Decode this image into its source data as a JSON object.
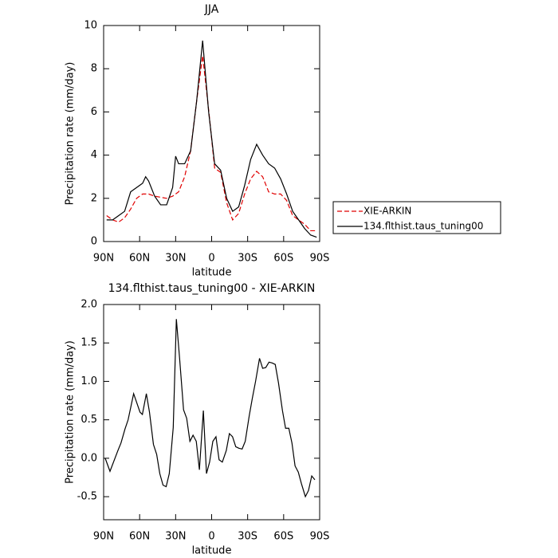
{
  "chart_data": [
    {
      "type": "line",
      "title": "JJA",
      "xlabel": "latitude",
      "ylabel": "Precipitation rate (mm/day)",
      "xlim": [
        90,
        -90
      ],
      "ylim": [
        0,
        10
      ],
      "xticks": [
        {
          "value": 90,
          "label": "90N"
        },
        {
          "value": 60,
          "label": "60N"
        },
        {
          "value": 30,
          "label": "30N"
        },
        0,
        {
          "value": -30,
          "label": "30S"
        },
        {
          "value": -60,
          "label": "60S"
        },
        {
          "value": -90,
          "label": "90S"
        }
      ],
      "yticks": [
        0,
        2,
        4,
        6,
        8,
        10
      ],
      "legend": "right",
      "series": [
        {
          "name": "XIE-ARKIN",
          "color": "#e00000",
          "style": "dashed",
          "x": [
            87.5,
            82.5,
            77.5,
            72.5,
            67.5,
            62.5,
            57.5,
            52.5,
            47.5,
            42.5,
            37.5,
            32.5,
            27.5,
            22.5,
            17.5,
            12.5,
            7.5,
            2.5,
            -2.5,
            -7.5,
            -12.5,
            -17.5,
            -22.5,
            -27.5,
            -32.5,
            -37.5,
            -42.5,
            -47.5,
            -52.5,
            -57.5,
            -62.5,
            -67.5,
            -72.5,
            -77.5,
            -82.5,
            -87.5
          ],
          "values": [
            1.2,
            1.0,
            0.9,
            1.1,
            1.5,
            2.0,
            2.2,
            2.2,
            2.1,
            2.05,
            2.0,
            2.1,
            2.3,
            3.0,
            4.2,
            6.5,
            8.6,
            6.1,
            3.4,
            3.2,
            1.8,
            1.0,
            1.3,
            2.2,
            2.9,
            3.25,
            3.0,
            2.3,
            2.2,
            2.2,
            1.9,
            1.2,
            1.0,
            0.8,
            0.5,
            0.5
          ]
        },
        {
          "name": "134.flthist.taus_tuning00",
          "color": "#000000",
          "style": "solid",
          "x": [
            87.5,
            82.5,
            77.5,
            72.5,
            67.5,
            62.5,
            57.5,
            55,
            52.5,
            47.5,
            42.5,
            37.5,
            32.5,
            30,
            27.5,
            22.5,
            17.5,
            12.5,
            7.5,
            2.5,
            -2.5,
            -7.5,
            -12.5,
            -17.5,
            -22.5,
            -27.5,
            -32.5,
            -37.5,
            -42.5,
            -47.5,
            -52.5,
            -57.5,
            -62.5,
            -67.5,
            -72.5,
            -77.5,
            -82.5,
            -87.5
          ],
          "values": [
            1.0,
            1.0,
            1.2,
            1.4,
            2.3,
            2.5,
            2.7,
            3.0,
            2.8,
            2.1,
            1.7,
            1.7,
            2.5,
            3.95,
            3.6,
            3.6,
            4.2,
            6.5,
            9.3,
            6.0,
            3.6,
            3.3,
            2.0,
            1.4,
            1.6,
            2.6,
            3.8,
            4.5,
            4.0,
            3.6,
            3.4,
            2.9,
            2.2,
            1.4,
            1.0,
            0.6,
            0.3,
            0.2
          ]
        }
      ]
    },
    {
      "type": "line",
      "title": "134.flthist.taus_tuning00 - XIE-ARKIN",
      "xlabel": "latitude",
      "ylabel": "Precipitation rate (mm/day)",
      "xlim": [
        90,
        -90
      ],
      "ylim": [
        -0.8,
        2.0
      ],
      "xticks": [
        {
          "value": 90,
          "label": "90N"
        },
        {
          "value": 60,
          "label": "60N"
        },
        {
          "value": 30,
          "label": "30N"
        },
        0,
        {
          "value": -30,
          "label": "30S"
        },
        {
          "value": -60,
          "label": "60S"
        },
        {
          "value": -90,
          "label": "90S"
        }
      ],
      "yticks": [
        -0.5,
        {
          "value": 0,
          "label": "0.0"
        },
        0.5,
        {
          "value": 1,
          "label": "1.0"
        },
        1.5,
        {
          "value": 2,
          "label": "2.0"
        }
      ],
      "series": [
        {
          "color": "#000000",
          "style": "solid",
          "x": [
            88.7,
            84.7,
            78.1,
            75.5,
            72.2,
            69.6,
            65,
            59.7,
            57.7,
            54.4,
            51.8,
            48.5,
            45.8,
            43.2,
            40.5,
            37.9,
            35.3,
            32,
            29.4,
            26.7,
            23.4,
            20.8,
            18.1,
            15.5,
            12.8,
            10.2,
            6.9,
            4.3,
            1.7,
            -1,
            -3.6,
            -6.2,
            -8.9,
            -12.2,
            -14.8,
            -17.4,
            -20.1,
            -22.7,
            -25.4,
            -28,
            -31.3,
            -33.9,
            -36.6,
            -39.9,
            -42.5,
            -45.1,
            -47.8,
            -50.4,
            -53,
            -55.7,
            -59,
            -61.6,
            -64.3,
            -66.9,
            -69.5,
            -72.2,
            -74.8,
            -78.1,
            -80.7,
            -83.4,
            -86
          ],
          "values": [
            0.0,
            -0.17,
            0.1,
            0.2,
            0.38,
            0.5,
            0.84,
            0.6,
            0.57,
            0.84,
            0.6,
            0.18,
            0.05,
            -0.2,
            -0.35,
            -0.37,
            -0.2,
            0.4,
            1.81,
            1.3,
            0.63,
            0.52,
            0.22,
            0.3,
            0.22,
            -0.15,
            0.62,
            -0.2,
            -0.05,
            0.22,
            0.28,
            -0.02,
            -0.05,
            0.1,
            0.32,
            0.28,
            0.15,
            0.13,
            0.12,
            0.22,
            0.55,
            0.78,
            1.0,
            1.3,
            1.17,
            1.18,
            1.25,
            1.24,
            1.22,
            0.98,
            0.62,
            0.39,
            0.39,
            0.2,
            -0.1,
            -0.18,
            -0.33,
            -0.5,
            -0.42,
            -0.23,
            -0.28
          ]
        }
      ]
    }
  ]
}
